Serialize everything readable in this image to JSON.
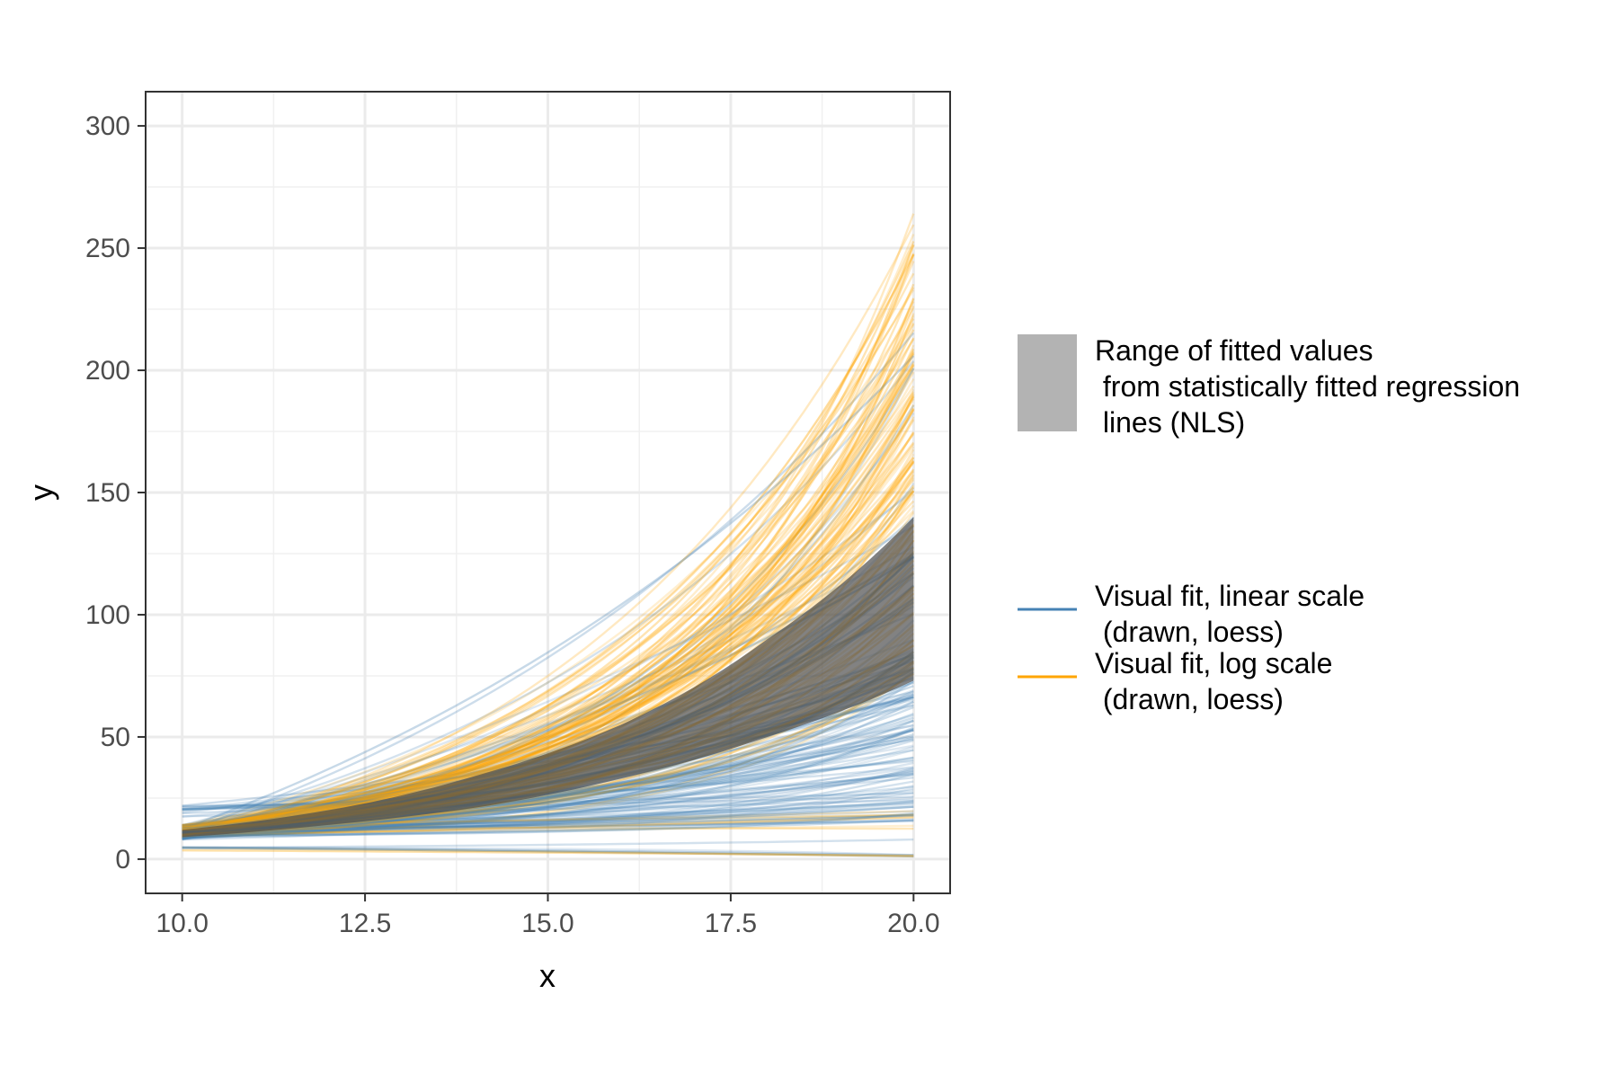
{
  "chart_data": {
    "type": "line",
    "title": "",
    "xlabel": "x",
    "ylabel": "y",
    "xlim": [
      9.5,
      20.5
    ],
    "ylim": [
      -14,
      314
    ],
    "x_ticks": [
      "10.0",
      "12.5",
      "15.0",
      "17.5",
      "20.0"
    ],
    "x_tick_values": [
      10,
      12.5,
      15,
      17.5,
      20
    ],
    "y_ticks": [
      "0",
      "50",
      "100",
      "150",
      "200",
      "250",
      "300"
    ],
    "y_tick_values": [
      0,
      50,
      100,
      150,
      200,
      250,
      300
    ],
    "grid": true,
    "legend_position": "right",
    "colors": {
      "linear": "#4682b4",
      "log": "#ffa500",
      "band": "#4d4d4d",
      "legend_band": "#b3b3b3"
    },
    "legend": [
      {
        "kind": "band",
        "lines": [
          "Range of fitted values",
          " from statistically fitted regression",
          " lines (NLS)"
        ]
      },
      {
        "kind": "line",
        "series": "linear",
        "lines": [
          "Visual fit, linear scale",
          " (drawn, loess)"
        ]
      },
      {
        "kind": "line",
        "series": "log",
        "lines": [
          "Visual fit, log scale",
          " (drawn, loess)"
        ]
      }
    ],
    "band": {
      "x": [
        10,
        12,
        14,
        16,
        18,
        20
      ],
      "lower": [
        9,
        14,
        21,
        33,
        50,
        73
      ],
      "upper": [
        12,
        20,
        34,
        55,
        90,
        140
      ]
    },
    "series": [
      {
        "key": "linear",
        "x": [
          10,
          15,
          20
        ],
        "y_start_range": [
          6,
          22
        ],
        "y_end_range": [
          0,
          225
        ],
        "count": 150
      },
      {
        "key": "log",
        "x": [
          10,
          15,
          20
        ],
        "y_start_range": [
          3,
          15
        ],
        "y_end_range": [
          0,
          265
        ],
        "count": 150
      }
    ]
  }
}
